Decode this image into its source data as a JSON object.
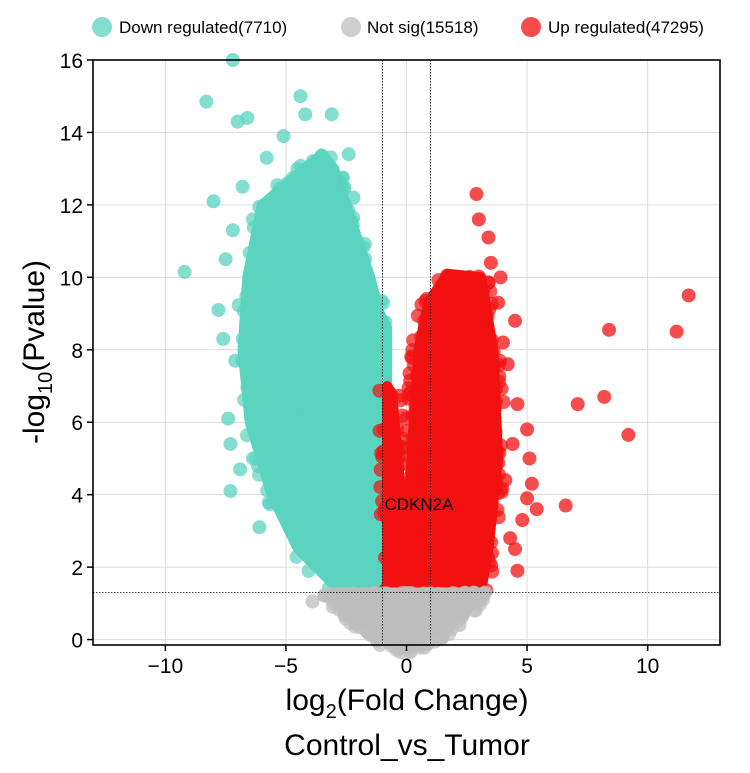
{
  "chart_data": {
    "type": "scatter",
    "title": "",
    "xlabel": "log2(Fold Change)",
    "xlabel_parts": {
      "base": "log",
      "sub": "2",
      "rest": "(Fold Change)"
    },
    "xlabel2": "Control_vs_Tumor",
    "ylabel": "-log10(Pvalue)",
    "ylabel_parts": {
      "base": "-log",
      "sub": "10",
      "rest": "(Pvalue)"
    },
    "xlim": [
      -13,
      13
    ],
    "ylim": [
      -0.15,
      16
    ],
    "xticks": [
      -10,
      -5,
      0,
      5,
      10
    ],
    "xtick_labels": [
      "−10",
      "−5",
      "0",
      "5",
      "10"
    ],
    "yticks": [
      0,
      2,
      4,
      6,
      8,
      10,
      12,
      14,
      16
    ],
    "ytick_labels": [
      "0",
      "2",
      "4",
      "6",
      "8",
      "10",
      "12",
      "14",
      "16"
    ],
    "grid": true,
    "legend_position": "top",
    "thresholds": {
      "fold_change_x": [
        -1,
        1
      ],
      "pvalue_y": 1.3
    },
    "annotations": [
      {
        "text": "CDKN2A",
        "x": -0.9,
        "y": 3.7
      }
    ],
    "series": [
      {
        "name": "Down regulated",
        "label": "Down regulated(7710)",
        "count": 7710,
        "color": "#5ad3bf",
        "envelope": [
          [
            -0.8,
            1.3
          ],
          [
            -3,
            1.5
          ],
          [
            -4.5,
            2.5
          ],
          [
            -5.6,
            4
          ],
          [
            -6.5,
            6
          ],
          [
            -6.8,
            8
          ],
          [
            -6.6,
            10
          ],
          [
            -6,
            12
          ],
          [
            -4.6,
            12.8
          ],
          [
            -3.5,
            13.4
          ],
          [
            -3,
            13
          ],
          [
            -2.5,
            12
          ],
          [
            -1.5,
            10
          ],
          [
            -1.1,
            9
          ],
          [
            -0.8,
            8.6
          ]
        ],
        "points": [
          [
            -7.2,
            16
          ],
          [
            -8.3,
            14.85
          ],
          [
            -4.4,
            15
          ],
          [
            -4.2,
            14.5
          ],
          [
            -3.1,
            14.5
          ],
          [
            -7.0,
            14.3
          ],
          [
            -5.1,
            13.9
          ],
          [
            -6.6,
            14.4
          ],
          [
            -9.2,
            10.15
          ],
          [
            -7.8,
            9.1
          ],
          [
            -7.3,
            4.1
          ],
          [
            -6.1,
            3.1
          ],
          [
            -7.4,
            6.1
          ],
          [
            -7.3,
            5.4
          ],
          [
            -2.4,
            13.4
          ],
          [
            -8.0,
            12.1
          ],
          [
            -7.5,
            10.5
          ],
          [
            -7.2,
            11.3
          ],
          [
            -6.8,
            12.5
          ],
          [
            -7.6,
            8.3
          ],
          [
            -7.1,
            7.7
          ],
          [
            -6.9,
            4.7
          ],
          [
            -5.8,
            13.3
          ],
          [
            -2.7,
            12.6
          ],
          [
            -2.2,
            12.2
          ]
        ]
      },
      {
        "name": "Not sig",
        "label": "Not sig(15518)",
        "count": 15518,
        "color": "#bdbdbd",
        "envelope": [
          [
            -3.2,
            1.3
          ],
          [
            -2.6,
            0.9
          ],
          [
            -1.8,
            0.5
          ],
          [
            -1,
            0.15
          ],
          [
            0,
            -0.05
          ],
          [
            1,
            0.15
          ],
          [
            1.8,
            0.5
          ],
          [
            2.6,
            0.9
          ],
          [
            3.2,
            1.3
          ]
        ],
        "points": [
          [
            -3.9,
            1.05
          ],
          [
            3.2,
            1.25
          ],
          [
            1.9,
            0.8
          ],
          [
            2.2,
            0.4
          ],
          [
            -2.9,
            1.1
          ],
          [
            -2.2,
            0.9
          ],
          [
            2.6,
            0.95
          ]
        ]
      },
      {
        "name": "Up regulated",
        "label": "Up regulated(47295)",
        "count": 47295,
        "color": "#f21111",
        "envelope_left": [
          [
            -0.8,
            1.35
          ],
          [
            -0.05,
            1.35
          ],
          [
            -0.1,
            2.5
          ],
          [
            -0.35,
            5
          ],
          [
            -0.6,
            6.8
          ],
          [
            -0.8,
            7.0
          ]
        ],
        "envelope": [
          [
            0.05,
            1.35
          ],
          [
            3.1,
            1.35
          ],
          [
            3.4,
            2.5
          ],
          [
            3.8,
            5
          ],
          [
            3.6,
            8
          ],
          [
            3.1,
            10
          ],
          [
            1.7,
            10.1
          ],
          [
            0.9,
            9.3
          ],
          [
            0.5,
            8
          ],
          [
            0.2,
            5
          ],
          [
            0.05,
            2.5
          ]
        ],
        "points": [
          [
            11.7,
            9.5
          ],
          [
            11.2,
            8.5
          ],
          [
            8.4,
            8.55
          ],
          [
            9.2,
            5.65
          ],
          [
            8.2,
            6.7
          ],
          [
            7.1,
            6.5
          ],
          [
            6.6,
            3.7
          ],
          [
            2.9,
            12.3
          ],
          [
            3.0,
            11.6
          ],
          [
            3.5,
            10.4
          ],
          [
            3.8,
            9.3
          ],
          [
            4.5,
            8.8
          ],
          [
            4.6,
            6.5
          ],
          [
            5.0,
            5.8
          ],
          [
            5.1,
            5.0
          ],
          [
            5.0,
            3.9
          ],
          [
            4.8,
            3.3
          ],
          [
            4.5,
            2.5
          ],
          [
            4.6,
            1.9
          ],
          [
            5.2,
            4.3
          ],
          [
            5.4,
            3.6
          ],
          [
            3.4,
            11.1
          ],
          [
            4.2,
            7.6
          ],
          [
            4.4,
            5.4
          ],
          [
            4.1,
            4.4
          ],
          [
            3.9,
            10
          ],
          [
            4.3,
            2.8
          ],
          [
            3.7,
            6.9
          ],
          [
            4.0,
            8.2
          ]
        ]
      }
    ]
  }
}
